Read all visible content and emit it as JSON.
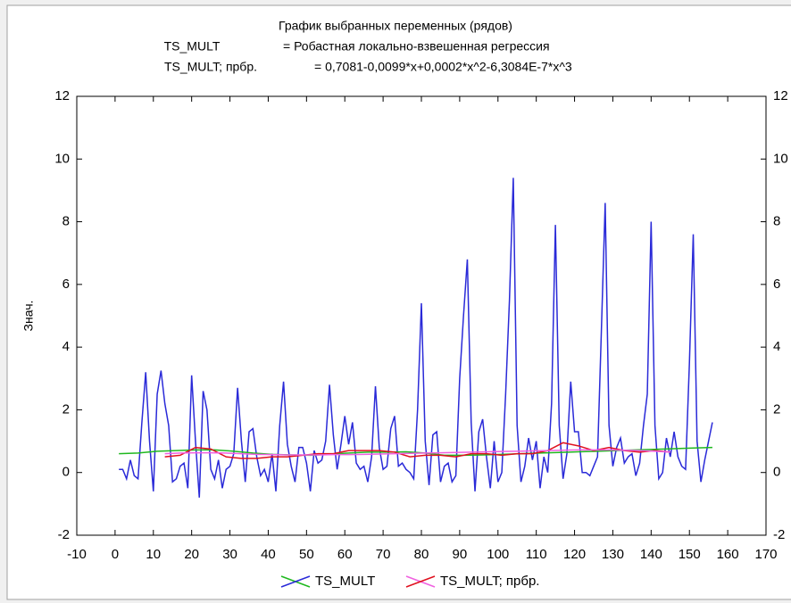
{
  "chart_data": {
    "type": "line",
    "title": "График выбранных переменных (рядов)",
    "subtitles": [
      {
        "name": "TS_MULT",
        "text": "= Робастная локально-взвешенная регрессия"
      },
      {
        "name": "TS_MULT; прбр.",
        "text": "= 0,7081-0,0099*x+0,0002*x^2-6,3084E-7*x^3"
      }
    ],
    "y_label": "Знач.",
    "xlim": [
      -10,
      170
    ],
    "xticks": [
      -10,
      0,
      10,
      20,
      30,
      40,
      50,
      60,
      70,
      80,
      90,
      100,
      110,
      120,
      130,
      140,
      150,
      160,
      170
    ],
    "ylim": [
      -2,
      12
    ],
    "yticks": [
      -2,
      0,
      2,
      4,
      6,
      8,
      10,
      12
    ],
    "grid": false,
    "series": [
      {
        "name": "TS_MULT",
        "color": "#2a2ad8",
        "x": [
          1,
          2,
          3,
          4,
          5,
          6,
          7,
          8,
          9,
          10,
          11,
          12,
          13,
          14,
          15,
          16,
          17,
          18,
          19,
          20,
          21,
          22,
          23,
          24,
          25,
          26,
          27,
          28,
          29,
          30,
          31,
          32,
          33,
          34,
          35,
          36,
          37,
          38,
          39,
          40,
          41,
          42,
          43,
          44,
          45,
          46,
          47,
          48,
          49,
          50,
          51,
          52,
          53,
          54,
          55,
          56,
          57,
          58,
          59,
          60,
          61,
          62,
          63,
          64,
          65,
          66,
          67,
          68,
          69,
          70,
          71,
          72,
          73,
          74,
          75,
          76,
          77,
          78,
          79,
          80,
          81,
          82,
          83,
          84,
          85,
          86,
          87,
          88,
          89,
          90,
          91,
          92,
          93,
          94,
          95,
          96,
          97,
          98,
          99,
          100,
          101,
          102,
          103,
          104,
          105,
          106,
          107,
          108,
          109,
          110,
          111,
          112,
          113,
          114,
          115,
          116,
          117,
          118,
          119,
          120,
          121,
          122,
          123,
          124,
          125,
          126,
          127,
          128,
          129,
          130,
          131,
          132,
          133,
          134,
          135,
          136,
          137,
          138,
          139,
          140,
          141,
          142,
          143,
          144,
          145,
          146,
          147,
          148,
          149,
          150,
          151,
          152,
          153,
          154,
          155,
          156
        ],
        "values": [
          0.1,
          0.1,
          -0.2,
          0.4,
          -0.1,
          -0.2,
          1.6,
          3.2,
          1.0,
          -0.6,
          2.5,
          3.25,
          2.2,
          1.5,
          -0.3,
          -0.2,
          0.2,
          0.3,
          -0.5,
          3.1,
          1.0,
          -0.8,
          2.6,
          2.0,
          0.1,
          -0.2,
          0.4,
          -0.5,
          0.1,
          0.2,
          0.6,
          2.7,
          1.0,
          -0.3,
          1.3,
          1.4,
          0.5,
          -0.1,
          0.1,
          -0.3,
          0.6,
          -0.6,
          1.5,
          2.9,
          0.9,
          0.2,
          -0.3,
          0.8,
          0.8,
          0.3,
          -0.6,
          0.7,
          0.3,
          0.4,
          1.0,
          2.8,
          1.2,
          0.1,
          0.9,
          1.8,
          0.9,
          1.6,
          0.3,
          0.1,
          0.2,
          -0.3,
          0.5,
          2.75,
          0.8,
          0.1,
          0.2,
          1.4,
          1.8,
          0.2,
          0.3,
          0.1,
          0.0,
          -0.2,
          2.0,
          5.4,
          1.0,
          -0.4,
          1.2,
          1.3,
          -0.3,
          0.2,
          0.3,
          -0.3,
          -0.1,
          3.0,
          5.0,
          6.8,
          1.6,
          -0.6,
          1.3,
          1.7,
          0.5,
          -0.5,
          1.0,
          -0.3,
          0.0,
          2.5,
          5.5,
          9.4,
          1.5,
          -0.3,
          0.2,
          1.1,
          0.4,
          1.0,
          -0.5,
          0.5,
          0.0,
          2.2,
          7.9,
          1.5,
          -0.2,
          0.6,
          2.9,
          1.3,
          1.3,
          0.0,
          0.0,
          -0.1,
          0.2,
          0.5,
          4.5,
          8.6,
          1.5,
          0.2,
          0.8,
          1.1,
          0.3,
          0.5,
          0.6,
          -0.1,
          0.3,
          1.5,
          2.5,
          8.0,
          1.5,
          -0.2,
          0.0,
          1.1,
          0.5,
          1.3,
          0.5,
          0.2,
          0.1,
          3.5,
          7.6,
          1.0,
          -0.3,
          0.4,
          1.0,
          1.6
        ],
        "fit": {
          "color": "#1fb81f",
          "x": [
            1,
            6,
            11,
            16,
            21,
            26,
            31,
            36,
            41,
            46,
            51,
            56,
            61,
            66,
            71,
            76,
            81,
            86,
            91,
            96,
            101,
            106,
            111,
            116,
            121,
            126,
            131,
            136,
            141,
            146,
            151,
            156
          ],
          "values": [
            0.6,
            0.62,
            0.68,
            0.7,
            0.72,
            0.72,
            0.68,
            0.62,
            0.58,
            0.56,
            0.55,
            0.58,
            0.62,
            0.65,
            0.65,
            0.66,
            0.62,
            0.55,
            0.55,
            0.56,
            0.58,
            0.6,
            0.62,
            0.64,
            0.66,
            0.68,
            0.7,
            0.72,
            0.74,
            0.76,
            0.78,
            0.8
          ]
        }
      },
      {
        "name": "TS_MULT; прбр.",
        "color": "#e0101e",
        "x": [
          13,
          17,
          21,
          25,
          29,
          33,
          37,
          41,
          45,
          49,
          53,
          57,
          61,
          65,
          69,
          73,
          77,
          81,
          85,
          89,
          93,
          97,
          101,
          105,
          109,
          113,
          117,
          121,
          125,
          129,
          133,
          137,
          141,
          145
        ],
        "values": [
          0.5,
          0.55,
          0.8,
          0.75,
          0.5,
          0.45,
          0.45,
          0.5,
          0.5,
          0.55,
          0.6,
          0.6,
          0.7,
          0.7,
          0.7,
          0.65,
          0.5,
          0.55,
          0.55,
          0.5,
          0.6,
          0.6,
          0.55,
          0.6,
          0.6,
          0.7,
          0.95,
          0.85,
          0.7,
          0.8,
          0.7,
          0.65,
          0.7,
          0.65
        ],
        "fit": {
          "color": "#f060e0",
          "x": [
            13,
            17,
            21,
            25,
            29,
            33,
            37,
            41,
            45,
            49,
            53,
            57,
            61,
            65,
            69,
            73,
            77,
            81,
            85,
            89,
            93,
            97,
            101,
            105,
            109,
            113,
            117,
            121,
            125,
            129,
            133,
            137,
            141,
            145
          ],
          "values": [
            0.6,
            0.62,
            0.63,
            0.63,
            0.62,
            0.6,
            0.58,
            0.57,
            0.56,
            0.56,
            0.56,
            0.57,
            0.57,
            0.58,
            0.59,
            0.6,
            0.61,
            0.62,
            0.63,
            0.64,
            0.65,
            0.66,
            0.67,
            0.68,
            0.69,
            0.7,
            0.71,
            0.72,
            0.72,
            0.72,
            0.71,
            0.7,
            0.68,
            0.65
          ]
        }
      }
    ]
  }
}
